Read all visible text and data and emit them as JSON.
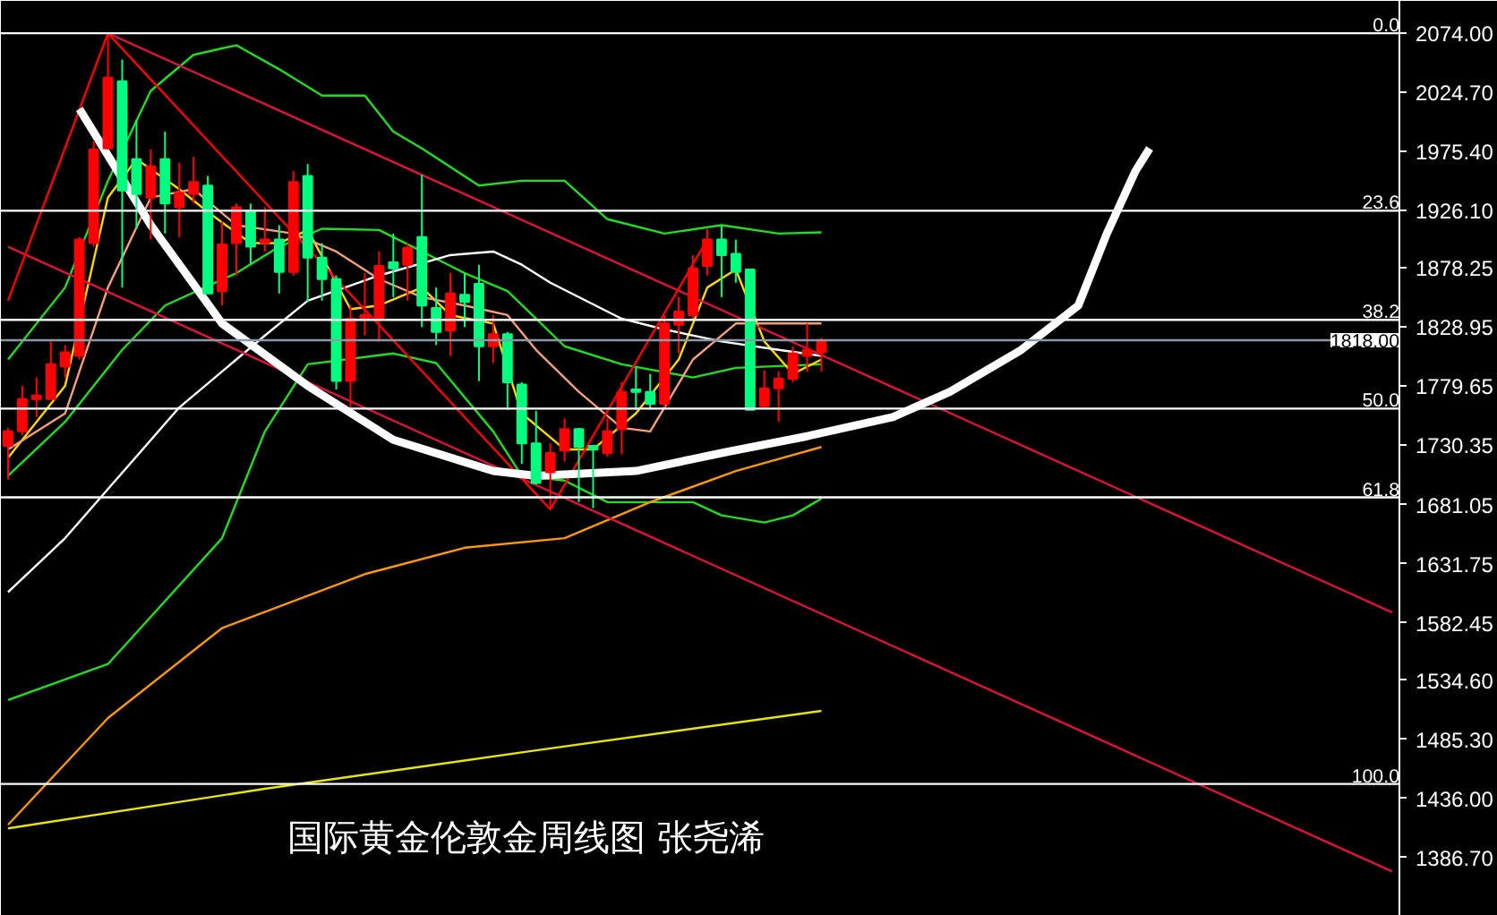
{
  "chart_data": {
    "type": "candlestick",
    "title": "国际黄金伦敦金周线图 张尧浠",
    "categories": [
      null,
      null,
      null,
      null,
      null,
      null,
      null,
      null,
      null,
      null,
      null,
      null,
      null,
      null,
      null,
      null,
      null,
      null,
      null,
      null,
      null,
      null,
      null,
      null,
      null,
      null,
      null,
      null,
      null,
      null,
      null,
      null,
      null,
      null,
      null,
      null,
      null,
      null,
      null,
      null,
      null,
      null,
      null,
      null,
      null,
      null,
      null,
      null,
      null,
      null,
      null,
      null,
      null,
      null,
      null,
      null,
      null,
      null,
      null,
      null,
      null,
      null,
      null,
      null,
      null,
      null,
      null,
      null,
      null,
      null,
      null,
      null,
      null,
      null,
      null,
      null,
      null,
      null,
      null,
      null,
      null,
      null,
      null,
      null,
      null,
      null,
      null,
      null,
      null,
      null,
      null,
      null,
      null,
      null,
      null,
      null,
      null,
      null
    ],
    "ohlc": [
      [
        1730,
        1745,
        1702,
        1742
      ],
      [
        1742,
        1780,
        1739,
        1769
      ],
      [
        1769,
        1787,
        1754,
        1772
      ],
      [
        1769,
        1817,
        1768,
        1798
      ],
      [
        1796,
        1814,
        1787,
        1808
      ],
      [
        1805,
        1904,
        1802,
        1902
      ],
      [
        1899,
        1984,
        1896,
        1977
      ],
      [
        1978,
        2074,
        1977,
        2037
      ],
      [
        2034,
        2052,
        1862,
        1943
      ],
      [
        1969,
        2002,
        1911,
        1940
      ],
      [
        1937,
        1977,
        1902,
        1963
      ],
      [
        1969,
        1992,
        1907,
        1932
      ],
      [
        1929,
        1966,
        1904,
        1941
      ],
      [
        1940,
        1971,
        1932,
        1950
      ],
      [
        1947,
        1955,
        1857,
        1857
      ],
      [
        1859,
        1917,
        1847,
        1898
      ],
      [
        1899,
        1932,
        1872,
        1929
      ],
      [
        1926,
        1932,
        1881,
        1896
      ],
      [
        1899,
        1929,
        1892,
        1902
      ],
      [
        1902,
        1914,
        1857,
        1875
      ],
      [
        1875,
        1959,
        1872,
        1950
      ],
      [
        1955,
        1965,
        1850,
        1887
      ],
      [
        1887,
        1899,
        1851,
        1869
      ],
      [
        1869,
        1872,
        1777,
        1784
      ],
      [
        1784,
        1847,
        1762,
        1836
      ],
      [
        1836,
        1874,
        1822,
        1839
      ],
      [
        1836,
        1892,
        1817,
        1880
      ],
      [
        1883,
        1907,
        1854,
        1878
      ],
      [
        1881,
        1899,
        1851,
        1895
      ],
      [
        1904,
        1956,
        1829,
        1847
      ],
      [
        1845,
        1862,
        1814,
        1825
      ],
      [
        1826,
        1874,
        1805,
        1857
      ],
      [
        1856,
        1874,
        1829,
        1850
      ],
      [
        1865,
        1881,
        1784,
        1813
      ],
      [
        1813,
        1839,
        1799,
        1823
      ],
      [
        1823,
        1825,
        1760,
        1783
      ],
      [
        1781,
        1783,
        1715,
        1732
      ],
      [
        1732,
        1759,
        1698,
        1699
      ],
      [
        1708,
        1732,
        1677,
        1724
      ],
      [
        1726,
        1753,
        1717,
        1744
      ],
      [
        1744,
        1745,
        1683,
        1729
      ],
      [
        1730,
        1730,
        1678,
        1727
      ],
      [
        1724,
        1753,
        1721,
        1742
      ],
      [
        1744,
        1783,
        1723,
        1775
      ],
      [
        1777,
        1795,
        1760,
        1775
      ],
      [
        1775,
        1790,
        1760,
        1765
      ],
      [
        1765,
        1839,
        1762,
        1832
      ],
      [
        1831,
        1854,
        1807,
        1842
      ],
      [
        1839,
        1889,
        1836,
        1878
      ],
      [
        1880,
        1911,
        1872,
        1902
      ],
      [
        1902,
        1914,
        1854,
        1889
      ],
      [
        1890,
        1902,
        1866,
        1875
      ],
      [
        1877,
        1877,
        1760,
        1760
      ],
      [
        1763,
        1793,
        1762,
        1778
      ],
      [
        1778,
        1792,
        1750,
        1786
      ],
      [
        1786,
        1813,
        1783,
        1807
      ],
      [
        1805,
        1832,
        1792,
        1810
      ],
      [
        1808,
        1820,
        1792,
        1818
      ],
      null,
      null,
      null,
      null,
      null,
      null,
      null,
      null,
      null,
      null,
      null,
      null,
      null,
      null,
      null,
      null,
      null,
      null,
      null,
      null,
      null,
      null,
      null,
      null,
      null,
      null,
      null,
      null,
      null,
      null,
      null,
      null,
      null,
      null,
      null,
      null,
      null,
      null,
      null,
      null
    ],
    "colors": [
      "#ff0000",
      "#ff0000",
      "#ff0000",
      "#ff0000",
      "#ff0000",
      "#ff0000",
      "#ff0000",
      "#ff0000",
      "#00ff7f",
      "#00ff7f",
      "#ff0000",
      "#00ff7f",
      "#ff0000",
      "#ff0000",
      "#00ff7f",
      "#ff0000",
      "#ff0000",
      "#00ff7f",
      "#ff0000",
      "#00ff7f",
      "#ff0000",
      "#00ff7f",
      "#00ff7f",
      "#00ff7f",
      "#ff0000",
      "#ff0000",
      "#ff0000",
      "#00ff7f",
      "#ff0000",
      "#00ff7f",
      "#00ff7f",
      "#ff0000",
      "#00ff7f",
      "#00ff7f",
      "#ff0000",
      "#00ff7f",
      "#00ff7f",
      "#00ff7f",
      "#ff0000",
      "#ff0000",
      "#00ff7f",
      "#00ff7f",
      "#ff0000",
      "#ff0000",
      "#00ff7f",
      "#00ff7f",
      "#ff0000",
      "#ff0000",
      "#ff0000",
      "#ff0000",
      "#00ff7f",
      "#00ff7f",
      "#00ff7f",
      "#ff0000",
      "#ff0000",
      "#ff0000",
      "#ff0000",
      "#ff0000",
      null,
      null,
      null,
      null,
      null,
      null,
      null,
      null,
      null,
      null,
      null,
      null,
      null,
      null,
      null,
      null,
      null,
      null,
      null,
      null,
      null,
      null,
      null,
      null,
      null,
      null,
      null,
      null,
      null,
      null,
      null,
      null,
      null,
      null,
      null,
      null,
      null,
      null,
      null,
      null
    ],
    "series": [
      {
        "type": "line",
        "color": "#22dd22",
        "values": [
          1802,
          null,
          null,
          null,
          1862,
          null,
          null,
          1951,
          null,
          null,
          2026,
          null,
          null,
          2056,
          null,
          null,
          2064,
          null,
          null,
          2044,
          null,
          null,
          2022,
          null,
          null,
          2022,
          null,
          1992,
          null,
          1978,
          null,
          null,
          null,
          1947,
          null,
          null,
          1951,
          null,
          null,
          1951,
          null,
          null,
          1919,
          null,
          null,
          null,
          1907,
          null,
          null,
          null,
          1914,
          null,
          null,
          null,
          1907,
          null,
          null,
          1908,
          null,
          null,
          null,
          null,
          null,
          null,
          null,
          null,
          null,
          null,
          null,
          null,
          null,
          null,
          null,
          null,
          null,
          null,
          null,
          null,
          null,
          null,
          null,
          null,
          null,
          null,
          null,
          null,
          null,
          null,
          null,
          null,
          null,
          null,
          null,
          null,
          null,
          null,
          null,
          null
        ]
      },
      {
        "type": "line",
        "color": "#22dd22",
        "values": [
          1705,
          null,
          null,
          null,
          1750,
          null,
          null,
          null,
          1810,
          null,
          null,
          1847,
          null,
          null,
          null,
          null,
          1874,
          null,
          null,
          1896,
          null,
          null,
          1911,
          null,
          null,
          null,
          1910,
          null,
          null,
          1892,
          null,
          null,
          1874,
          null,
          null,
          1859,
          null,
          1836,
          null,
          1813,
          null,
          null,
          null,
          1798,
          null,
          null,
          null,
          null,
          1787,
          null,
          null,
          1795,
          null,
          null,
          null,
          null,
          null,
          1798,
          null,
          null,
          null,
          null,
          null,
          null,
          null,
          null,
          null,
          null,
          null,
          null,
          null,
          null,
          null,
          null,
          null,
          null,
          null,
          null,
          null,
          null,
          null,
          null,
          null,
          null,
          null,
          null,
          null,
          null,
          null,
          null,
          null,
          null,
          null,
          null,
          null,
          null,
          null,
          null
        ]
      },
      {
        "type": "line",
        "color": "#22dd22",
        "values": [
          1518,
          null,
          null,
          null,
          null,
          null,
          null,
          1548,
          null,
          null,
          null,
          null,
          null,
          null,
          null,
          1653,
          null,
          null,
          1742,
          null,
          null,
          1798,
          null,
          null,
          null,
          null,
          null,
          1807,
          null,
          null,
          1799,
          null,
          null,
          null,
          1742,
          null,
          1705,
          null,
          null,
          1701,
          null,
          null,
          1683,
          null,
          null,
          null,
          null,
          null,
          1683,
          null,
          1672,
          null,
          null,
          1666,
          null,
          1672,
          null,
          1686,
          null,
          null,
          null,
          null,
          null,
          null,
          null,
          null,
          null,
          null,
          null,
          null,
          null,
          null,
          null,
          null,
          null,
          null,
          null,
          null,
          null,
          null,
          null,
          null,
          null,
          null,
          null,
          null,
          null,
          null,
          null,
          null,
          null,
          null,
          null,
          null,
          null,
          null,
          null,
          null
        ]
      },
      {
        "type": "line",
        "color": "#ffd700",
        "values": [
          1720,
          null,
          null,
          null,
          1780,
          null,
          null,
          1937,
          null,
          1969,
          null,
          null,
          1944,
          null,
          1925,
          null,
          null,
          1899,
          null,
          1899,
          null,
          1910,
          null,
          null,
          1844,
          null,
          1847,
          null,
          null,
          1862,
          null,
          1839,
          null,
          null,
          1832,
          null,
          1757,
          null,
          null,
          1727,
          null,
          1727,
          null,
          null,
          1757,
          null,
          null,
          1802,
          null,
          1862,
          null,
          1877,
          null,
          1817,
          null,
          1790,
          null,
          1802,
          null,
          null,
          null,
          null,
          null,
          null,
          null,
          null,
          null,
          null,
          null,
          null,
          null,
          null,
          null,
          null,
          null,
          null,
          null,
          null,
          null,
          null,
          null,
          null,
          null,
          null,
          null,
          null,
          null,
          null,
          null,
          null,
          null,
          null,
          null,
          null,
          null,
          null,
          null,
          null
        ]
      },
      {
        "type": "line",
        "color": "#f4a07a",
        "values": [
          1727,
          null,
          null,
          null,
          1757,
          null,
          null,
          1862,
          null,
          null,
          1937,
          null,
          null,
          1944,
          null,
          null,
          1914,
          null,
          null,
          null,
          1907,
          null,
          null,
          1892,
          null,
          null,
          1869,
          null,
          null,
          1854,
          null,
          null,
          1847,
          null,
          null,
          1839,
          null,
          1810,
          null,
          null,
          1775,
          null,
          null,
          1745,
          null,
          1742,
          null,
          null,
          1802,
          null,
          null,
          1832,
          null,
          null,
          1832,
          null,
          null,
          1832,
          null,
          null,
          null,
          null,
          null,
          null,
          null,
          null,
          null,
          null,
          null,
          null,
          null,
          null,
          null,
          null,
          null,
          null,
          null,
          null,
          null,
          null,
          null,
          null,
          null,
          null,
          null,
          null,
          null,
          null,
          null,
          null,
          null,
          null,
          null,
          null,
          null,
          null,
          null,
          null
        ]
      },
      {
        "type": "line",
        "color": "#ffffff",
        "values": [
          1608,
          null,
          null,
          null,
          1653,
          null,
          null,
          null,
          null,
          null,
          null,
          null,
          1762,
          null,
          null,
          null,
          null,
          null,
          1822,
          null,
          null,
          1851,
          null,
          null,
          null,
          null,
          1872,
          null,
          null,
          null,
          null,
          1889,
          null,
          null,
          1892,
          null,
          1881,
          null,
          1866,
          null,
          null,
          null,
          null,
          1836,
          null,
          null,
          1827,
          null,
          null,
          null,
          1817,
          null,
          null,
          null,
          1810,
          null,
          null,
          1805,
          null,
          null,
          null,
          null,
          null,
          null,
          null,
          null,
          null,
          null,
          null,
          null,
          null,
          null,
          null,
          null,
          null,
          null,
          null,
          null,
          null,
          null,
          null,
          null,
          null,
          null,
          null,
          null,
          null,
          null,
          null,
          null,
          null,
          null,
          null,
          null,
          null,
          null,
          null,
          null
        ]
      },
      {
        "type": "line",
        "color": "#ff9900",
        "values": [
          1414,
          null,
          null,
          null,
          null,
          null,
          null,
          1503,
          null,
          null,
          null,
          null,
          null,
          null,
          null,
          1578,
          null,
          null,
          null,
          null,
          null,
          null,
          null,
          null,
          null,
          1623,
          null,
          null,
          null,
          null,
          null,
          null,
          1645,
          null,
          null,
          null,
          null,
          null,
          null,
          1653,
          null,
          null,
          null,
          null,
          null,
          1683,
          null,
          null,
          null,
          null,
          null,
          1709,
          null,
          null,
          null,
          null,
          null,
          1729,
          null,
          null,
          null,
          null,
          null,
          null,
          null,
          null,
          null,
          null,
          null,
          null,
          null,
          null,
          null,
          null,
          null,
          null,
          null,
          null,
          null,
          null,
          null,
          null,
          null,
          null,
          null,
          null,
          null,
          null,
          null,
          null,
          null,
          null,
          null,
          null,
          null,
          null,
          null,
          null
        ]
      },
      {
        "type": "line",
        "color": "#e6e600",
        "values": [
          1411,
          null,
          null,
          null,
          null,
          null,
          null,
          null,
          null,
          null,
          null,
          null,
          null,
          null,
          null,
          null,
          null,
          null,
          1444,
          null,
          null,
          null,
          null,
          null,
          null,
          null,
          null,
          null,
          null,
          null,
          null,
          null,
          null,
          null,
          null,
          null,
          null,
          1476,
          null,
          null,
          null,
          null,
          null,
          null,
          null,
          null,
          null,
          null,
          null,
          null,
          null,
          null,
          null,
          null,
          null,
          null,
          null,
          1509,
          null,
          null,
          null,
          null,
          null,
          null,
          null,
          null,
          null,
          null,
          null,
          null,
          null,
          null,
          null,
          null,
          null,
          null,
          null,
          null,
          null,
          null,
          null,
          null,
          null,
          null,
          null,
          null,
          null,
          null,
          null,
          null,
          null,
          null,
          null,
          null,
          null,
          null,
          null,
          null
        ]
      },
      {
        "type": "line",
        "color": "#dc143c",
        "values": [
          null,
          null,
          null,
          null,
          null,
          null,
          null,
          2074,
          null,
          null,
          null,
          null,
          null,
          null,
          null,
          null,
          null,
          null,
          null,
          null,
          null,
          null,
          null,
          null,
          null,
          null,
          null,
          null,
          null,
          null,
          null,
          null,
          null,
          null,
          null,
          null,
          null,
          null,
          null,
          null,
          null,
          null,
          null,
          null,
          null,
          null,
          null,
          null,
          null,
          null,
          null,
          null,
          null,
          null,
          null,
          null,
          null,
          null,
          null,
          null,
          null,
          null,
          null,
          null,
          null,
          null,
          null,
          null,
          null,
          null,
          null,
          null,
          null,
          null,
          null,
          null,
          null,
          null,
          null,
          null,
          null,
          null,
          null,
          null,
          null,
          null,
          null,
          null,
          null,
          null,
          null,
          null,
          null,
          null,
          null,
          null,
          null,
          1591
        ]
      },
      {
        "type": "line",
        "color": "#dc143c",
        "values": [
          1896,
          null,
          null,
          null,
          null,
          null,
          null,
          null,
          null,
          null,
          null,
          null,
          null,
          null,
          null,
          null,
          null,
          null,
          null,
          null,
          null,
          null,
          null,
          null,
          null,
          null,
          null,
          null,
          null,
          null,
          null,
          null,
          null,
          null,
          null,
          null,
          null,
          null,
          null,
          null,
          null,
          null,
          null,
          null,
          null,
          null,
          null,
          null,
          null,
          null,
          null,
          null,
          null,
          null,
          null,
          null,
          null,
          null,
          null,
          null,
          null,
          null,
          null,
          null,
          null,
          null,
          null,
          null,
          null,
          null,
          null,
          null,
          null,
          null,
          null,
          null,
          null,
          null,
          null,
          null,
          null,
          null,
          null,
          null,
          null,
          null,
          null,
          null,
          null,
          null,
          null,
          null,
          null,
          null,
          null,
          null,
          null,
          1375
        ]
      },
      {
        "type": "line",
        "color": "#ff0000",
        "values": [
          1851,
          null,
          null,
          null,
          null,
          null,
          null,
          2074,
          null,
          null,
          null,
          null,
          null,
          null,
          null,
          null,
          null,
          null,
          null,
          null,
          null,
          null,
          null,
          null,
          null,
          null,
          null,
          null,
          null,
          null,
          null,
          null,
          null,
          null,
          null,
          null,
          null,
          null,
          1677,
          null,
          null,
          null,
          null,
          null,
          null,
          null,
          null,
          null,
          null,
          1902,
          null,
          null,
          null,
          null,
          null,
          null,
          null,
          null,
          null,
          null,
          null,
          null,
          null,
          null,
          null,
          null,
          null,
          null,
          null,
          null,
          null,
          null,
          null,
          null,
          null,
          null,
          null,
          null,
          null,
          null,
          null,
          null,
          null,
          null,
          null,
          null,
          null,
          null,
          null,
          null,
          null,
          null,
          null,
          null,
          null,
          null,
          null,
          null
        ]
      },
      {
        "type": "line",
        "color": "#ffffff",
        "values": [
          null,
          null,
          null,
          null,
          null,
          2011,
          null,
          null,
          null,
          null,
          1914,
          null,
          null,
          null,
          null,
          1832,
          null,
          null,
          null,
          null,
          null,
          1780,
          null,
          null,
          null,
          null,
          null,
          1735,
          null,
          null,
          null,
          null,
          null,
          null,
          1709,
          null,
          null,
          1705,
          null,
          null,
          null,
          null,
          null,
          null,
          1709,
          null,
          null,
          null,
          null,
          null,
          1724,
          null,
          null,
          null,
          null,
          null,
          1738,
          null,
          null,
          null,
          null,
          null,
          1754,
          null,
          null,
          null,
          1775,
          null,
          null,
          null,
          null,
          1810,
          null,
          null,
          null,
          1847,
          null,
          1907,
          null,
          1959,
          1978,
          null,
          null,
          null,
          null,
          null,
          null,
          null,
          null,
          null,
          null,
          null,
          null,
          null,
          null,
          null,
          null,
          null
        ]
      }
    ],
    "ylim": [
      1338,
      2101
    ],
    "yticks": [
      {
        "value": 2074,
        "label": "2074.00"
      },
      {
        "value": 2024.7,
        "label": "2024.70"
      },
      {
        "value": 1975.4,
        "label": "1975.40"
      },
      {
        "value": 1926.1,
        "label": "1926.10"
      },
      {
        "value": 1878.25,
        "label": "1878.25"
      },
      {
        "value": 1828.95,
        "label": "1828.95"
      },
      {
        "value": 1779.65,
        "label": "1779.65"
      },
      {
        "value": 1730.35,
        "label": "1730.35"
      },
      {
        "value": 1681.05,
        "label": "1681.05"
      },
      {
        "value": 1631.75,
        "label": "1631.75"
      },
      {
        "value": 1582.45,
        "label": "1582.45"
      },
      {
        "value": 1534.6,
        "label": "1534.60"
      },
      {
        "value": 1485.3,
        "label": "1485.30"
      },
      {
        "value": 1436,
        "label": "1436.00"
      },
      {
        "value": 1386.7,
        "label": "1386.70"
      }
    ],
    "tick_labels": "y",
    "annotations": [
      {
        "text": "0.0",
        "y": 2074
      },
      {
        "text": "23.6",
        "y": 1926
      },
      {
        "text": "38.2",
        "y": 1835
      },
      {
        "text": "50.0",
        "y": 1761
      },
      {
        "text": "61.8",
        "y": 1687
      },
      {
        "text": "100.0",
        "y": 1448
      }
    ],
    "ref_lines": [
      {
        "axis": "y",
        "value": 2074
      },
      {
        "axis": "y",
        "value": 1926
      },
      {
        "axis": "y",
        "value": 1835
      },
      {
        "axis": "y",
        "value": 1761
      },
      {
        "axis": "y",
        "value": 1687
      },
      {
        "axis": "y",
        "value": 1448
      },
      {
        "axis": "y",
        "value": 1818,
        "label": "1818.00",
        "color": "#8c9aa8"
      }
    ]
  }
}
